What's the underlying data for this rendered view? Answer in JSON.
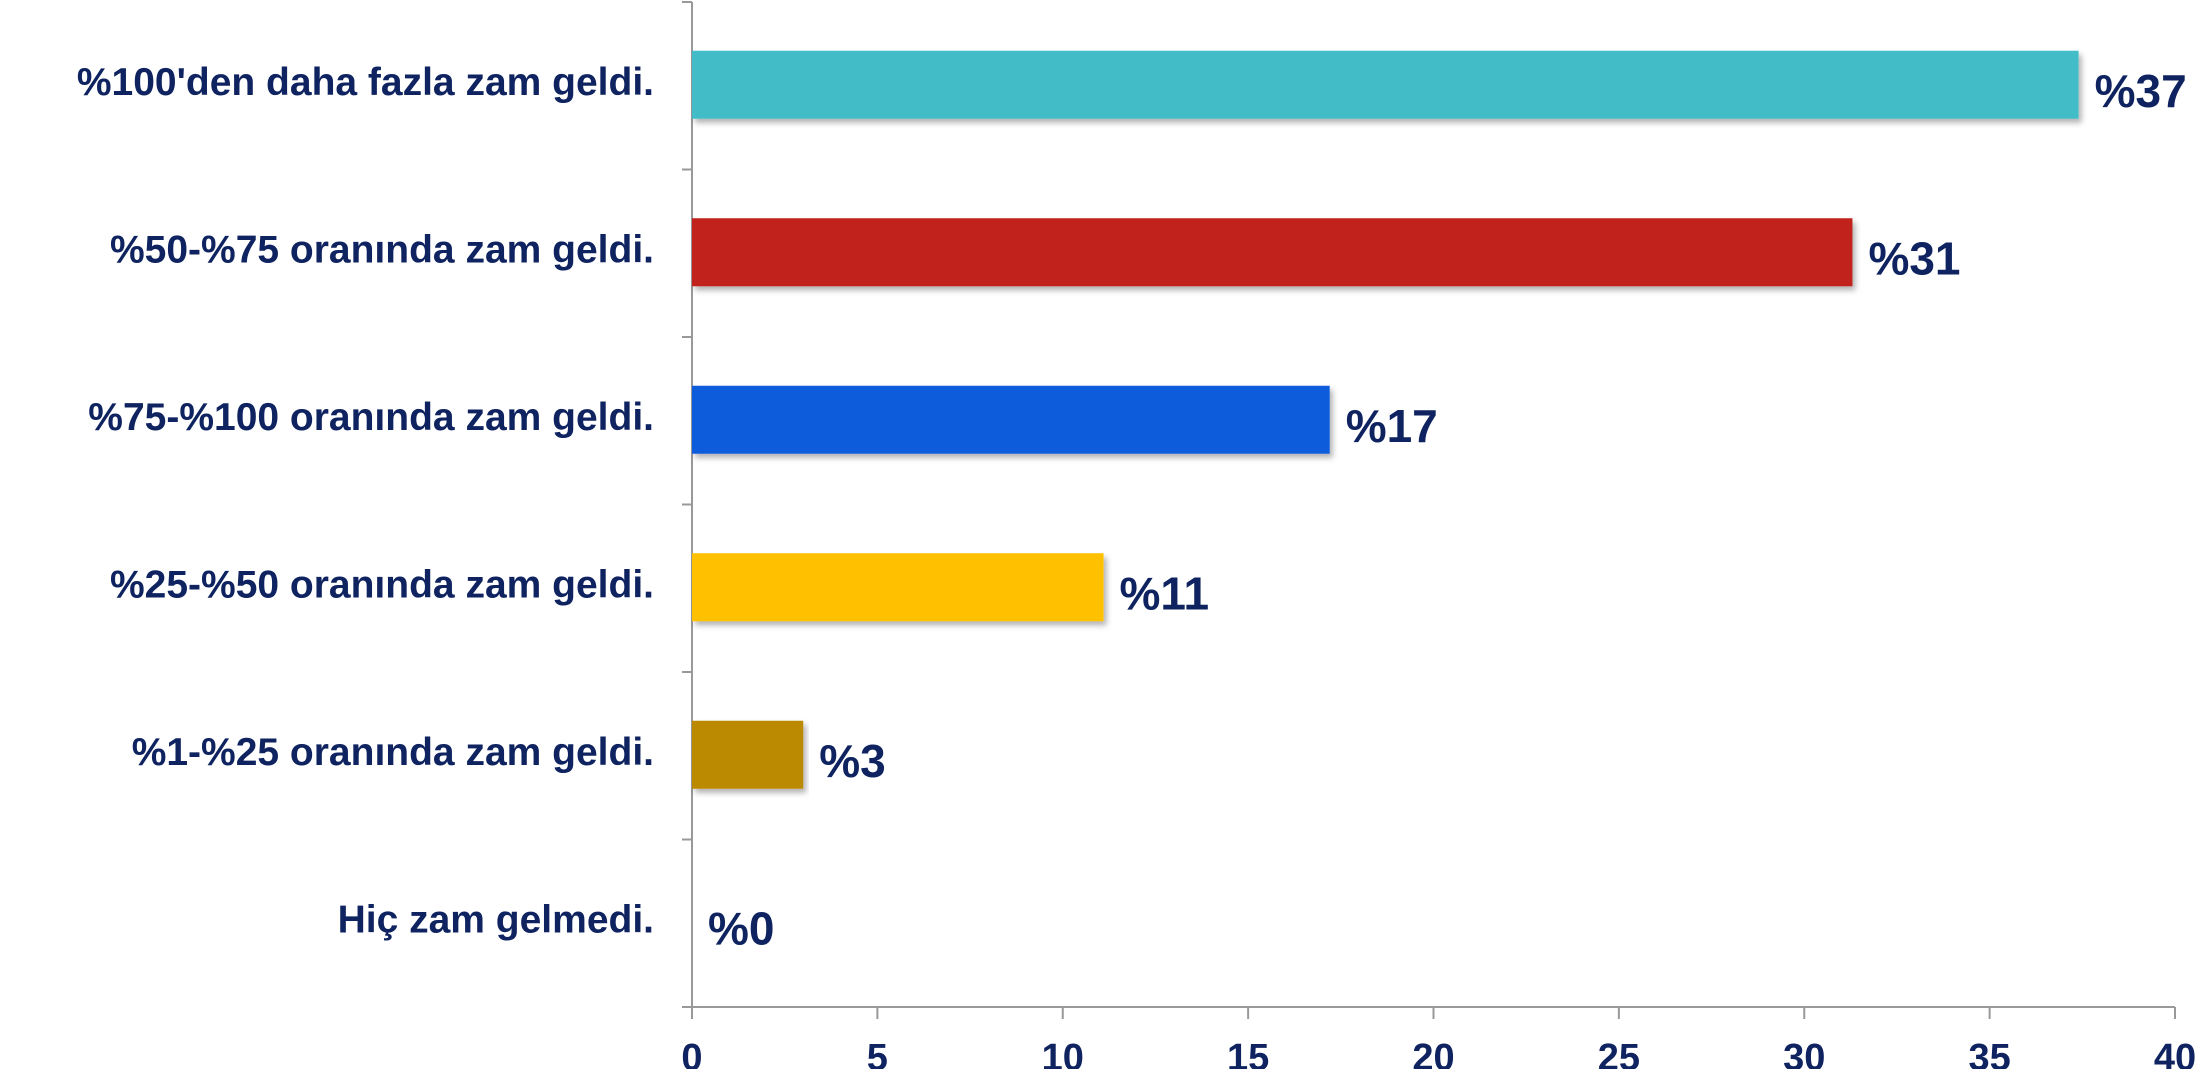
{
  "chart_data": {
    "type": "barh",
    "categories": [
      "%100'den daha fazla zam geldi.",
      "%50-%75 oranında zam geldi.",
      "%75-%100 oranında zam geldi.",
      "%25-%50 oranında zam geldi.",
      "%1-%25 oranında zam geldi.",
      "Hiç zam gelmedi."
    ],
    "values": [
      37.4,
      31.3,
      17.2,
      11.1,
      3,
      0
    ],
    "value_labels": [
      "%37",
      "%31",
      "%17",
      "%11",
      "%3",
      "%0"
    ],
    "colors": [
      "#43bcc6",
      "#c1241a",
      "#105bdc",
      "#ffc000",
      "#bb8a04",
      "#888888"
    ],
    "xlim": [
      0,
      40
    ],
    "xticks": [
      0,
      5,
      10,
      15,
      20,
      25,
      30,
      35,
      40
    ],
    "grid": false
  }
}
